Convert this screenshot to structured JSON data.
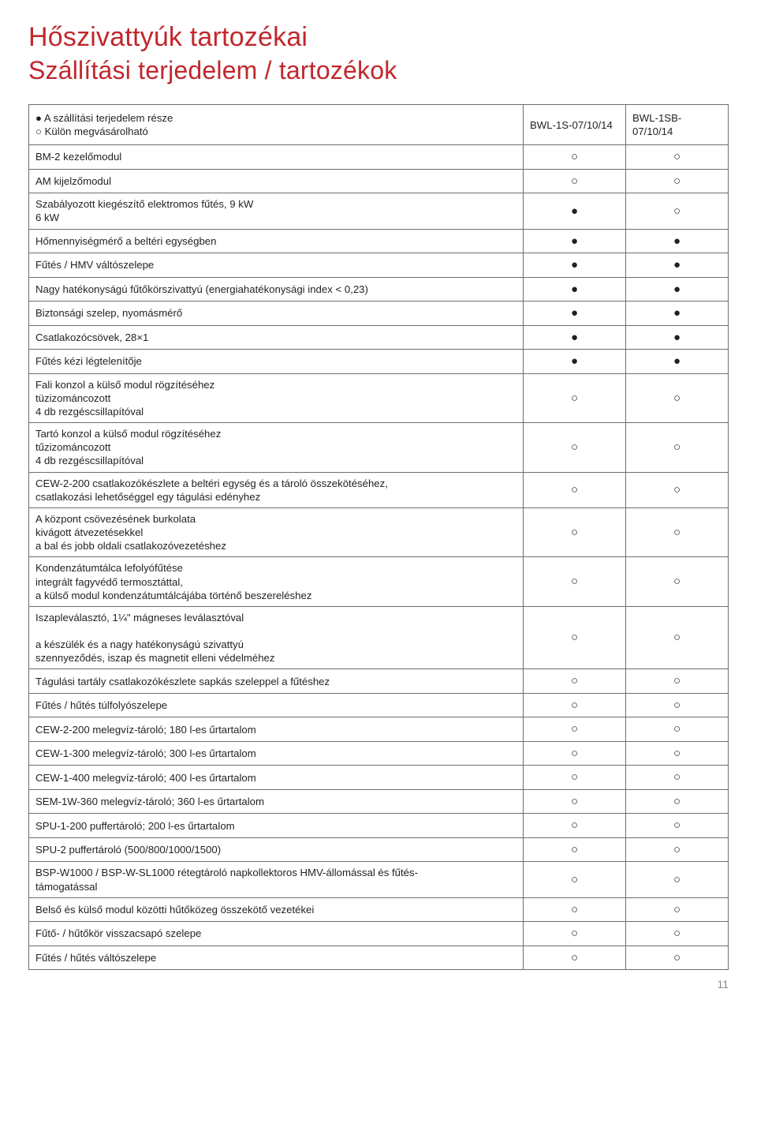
{
  "title": "Hőszivattyúk tartozékai",
  "subtitle": "Szállítási terjedelem / tartozékok",
  "legend": {
    "included": "● A szállítási terjedelem része",
    "optional": "○ Külön megvásárolható"
  },
  "columns": [
    "BWL-1S-07/10/14",
    "BWL-1SB-07/10/14"
  ],
  "marks": {
    "filled": "●",
    "open": "○",
    "combo": "●   ○"
  },
  "rows": [
    {
      "label": "BM-2 kezelőmodul",
      "c": [
        "open",
        "open"
      ]
    },
    {
      "label": "AM kijelzőmodul",
      "c": [
        "open",
        "open"
      ]
    },
    {
      "label": "Szabályozott kiegészítő elektromos fűtés, 9 kW\n                                                                  6 kW",
      "c": [
        "filled",
        "open"
      ]
    },
    {
      "label": "Hőmennyiségmérő a beltéri egységben",
      "c": [
        "filled",
        "filled"
      ]
    },
    {
      "label": "Fűtés / HMV váltószelepe",
      "c": [
        "filled",
        "filled"
      ]
    },
    {
      "label": "Nagy hatékonyságú fűtőkörszivattyú (energiahatékonysági index < 0,23)",
      "c": [
        "filled",
        "filled"
      ]
    },
    {
      "label": "Biztonsági szelep, nyomásmérő",
      "c": [
        "filled",
        "filled"
      ]
    },
    {
      "label": "Csatlakozócsövek, 28×1",
      "c": [
        "filled",
        "filled"
      ]
    },
    {
      "label": "Fűtés kézi légtelenítője",
      "c": [
        "filled",
        "filled"
      ]
    },
    {
      "label": "Fali konzol a külső modul rögzítéséhez\ntüzizománcozott\n4 db rezgéscsillapítóval",
      "c": [
        "open",
        "open"
      ]
    },
    {
      "label": "Tartó konzol a külső modul rögzítéséhez\ntűzizománcozott\n4 db rezgéscsillapítóval",
      "c": [
        "open",
        "open"
      ]
    },
    {
      "label": "CEW-2-200 csatlakozókészlete a beltéri egység és a tároló összekötéséhez,\ncsatlakozási lehetőséggel egy tágulási edényhez",
      "c": [
        "open",
        "open"
      ]
    },
    {
      "label": "A központ csövezésének burkolata\nkivágott átvezetésekkel\na bal és jobb oldali csatlakozóvezetéshez",
      "c": [
        "open",
        "open"
      ]
    },
    {
      "label": "Kondenzátumtálca lefolyófűtése\nintegrált fagyvédő termosztáttal,\na külső modul kondenzátumtálcájába történő beszereléshez",
      "c": [
        "open",
        "open"
      ]
    },
    {
      "label": "Iszapleválasztó, 1¼\" mágneses leválasztóval\n\na készülék és a nagy hatékonyságú szivattyú\nszennyeződés, iszap és magnetit elleni védelméhez",
      "c": [
        "open",
        "open"
      ]
    },
    {
      "label": "Tágulási tartály csatlakozókészlete sapkás szeleppel a fűtéshez",
      "c": [
        "open",
        "open"
      ]
    },
    {
      "label": "Fűtés / hűtés túlfolyószelepe",
      "c": [
        "open",
        "open"
      ]
    },
    {
      "label": "CEW-2-200 melegvíz-tároló; 180 l-es űrtartalom",
      "c": [
        "open",
        "open"
      ]
    },
    {
      "label": "CEW-1-300 melegvíz-tároló; 300 l-es űrtartalom",
      "c": [
        "open",
        "open"
      ]
    },
    {
      "label": "CEW-1-400 melegvíz-tároló; 400 l-es űrtartalom",
      "c": [
        "open",
        "open"
      ]
    },
    {
      "label": "SEM-1W-360 melegvíz-tároló; 360 l-es űrtartalom",
      "c": [
        "open",
        "open"
      ]
    },
    {
      "label": "SPU-1-200 puffertároló; 200 l-es űrtartalom",
      "c": [
        "open",
        "open"
      ]
    },
    {
      "label": "SPU-2 puffertároló (500/800/1000/1500)",
      "c": [
        "open",
        "open"
      ]
    },
    {
      "label": "BSP-W1000 / BSP-W-SL1000 rétegtároló napkollektoros HMV-állomással és fűtés-\ntámogatással",
      "c": [
        "open",
        "open"
      ]
    },
    {
      "label": "Belső és külső modul közötti hűtőközeg összekötő vezetékei",
      "c": [
        "open",
        "open"
      ]
    },
    {
      "label": "Fűtő- / hűtőkör visszacsapó szelepe",
      "c": [
        "open",
        "open"
      ]
    },
    {
      "label": "Fűtés / hűtés váltószelepe",
      "c": [
        "open",
        "open"
      ]
    }
  ],
  "page_number": "11"
}
